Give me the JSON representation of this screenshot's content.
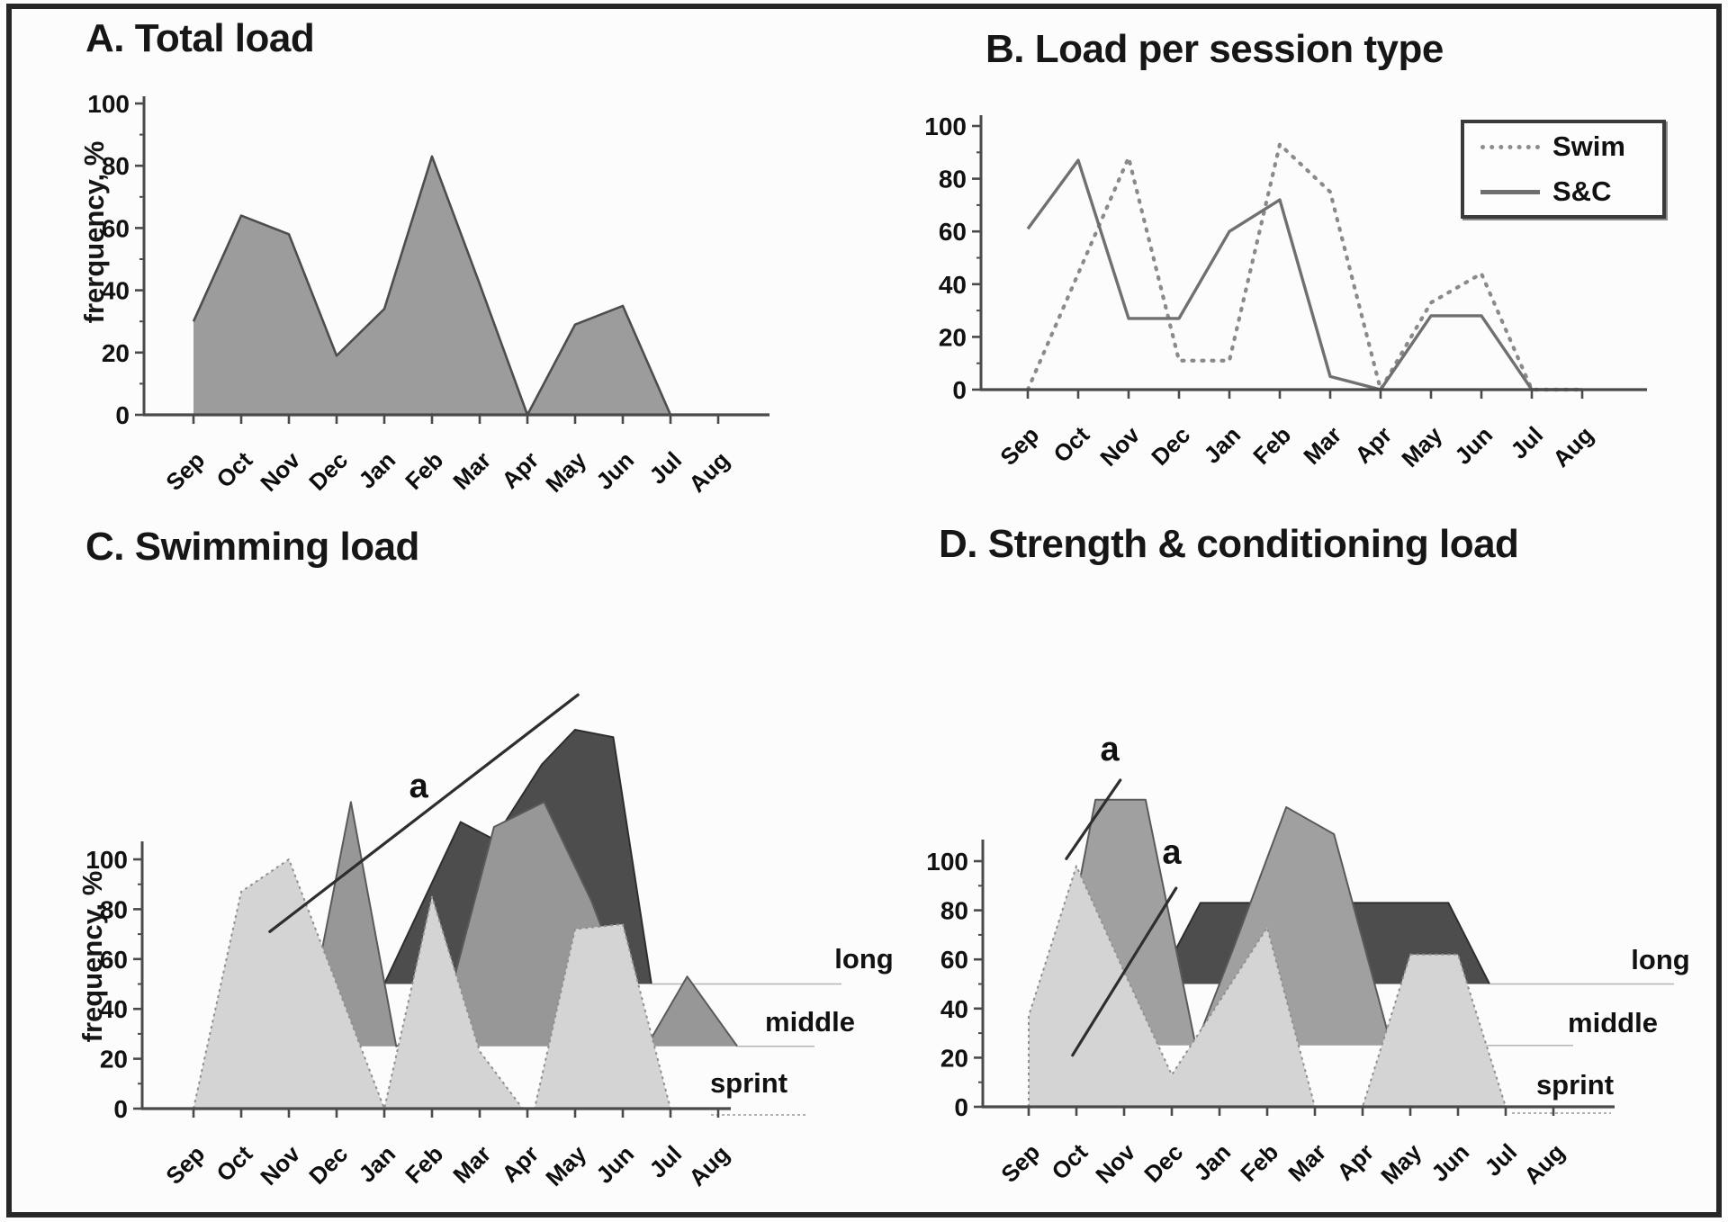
{
  "months": [
    "Sep",
    "Oct",
    "Nov",
    "Dec",
    "Jan",
    "Feb",
    "Mar",
    "Apr",
    "May",
    "Jun",
    "Jul",
    "Aug"
  ],
  "y_ticks": [
    0,
    20,
    40,
    60,
    80,
    100
  ],
  "panels": {
    "a": {
      "title": "A. Total load",
      "ylabel": "frerquency, %"
    },
    "b": {
      "title": "B. Load per session type"
    },
    "c": {
      "title": "C. Swimming load",
      "ylabel": "frequency, %"
    },
    "d": {
      "title": "D. Strength & conditioning load"
    }
  },
  "legend": {
    "entries": [
      {
        "label": "Swim",
        "line": "dotted"
      },
      {
        "label": "S&C",
        "line": "solid"
      }
    ]
  },
  "colors": {
    "area_fill": "#9c9c9c",
    "area_stroke": "#4d4d4d",
    "swim_line": "#8a8a8a",
    "sc_line": "#707070",
    "sprint_fill": "#d4d4d4",
    "middle_fill": "#979797",
    "long_fill": "#4d4d4d",
    "axis": "#4a4a4a",
    "annotation": "#2e2e2e",
    "guide": "#b5b5b5"
  },
  "chart_data": [
    {
      "panel": "A",
      "type": "area",
      "title": "A. Total load",
      "xlabel": "",
      "ylabel": "frerquency, %",
      "ylim": [
        0,
        100
      ],
      "grid": false,
      "categories": [
        "Sep",
        "Oct",
        "Nov",
        "Dec",
        "Jan",
        "Feb",
        "Mar",
        "Apr",
        "May",
        "Jun",
        "Jul",
        "Aug"
      ],
      "values": [
        30,
        64,
        58,
        19,
        34,
        83,
        42,
        0,
        29,
        35,
        0,
        0
      ],
      "fill": "#9c9c9c",
      "stroke": "#4d4d4d"
    },
    {
      "panel": "B",
      "type": "line",
      "title": "B. Load per session type",
      "xlabel": "",
      "ylabel": "",
      "ylim": [
        0,
        100
      ],
      "grid": false,
      "legend_position": "top-right",
      "categories": [
        "Sep",
        "Oct",
        "Nov",
        "Dec",
        "Jan",
        "Feb",
        "Mar",
        "Apr",
        "May",
        "Jun",
        "Jul",
        "Aug"
      ],
      "series": [
        {
          "name": "Swim",
          "style": "dotted",
          "color": "#8a8a8a",
          "values": [
            0,
            44,
            88,
            11,
            11,
            93,
            75,
            0,
            33,
            44,
            0,
            0
          ]
        },
        {
          "name": "S&C",
          "style": "solid",
          "color": "#707070",
          "values": [
            61,
            87,
            27,
            27,
            60,
            72,
            5,
            0,
            28,
            28,
            0,
            0
          ]
        }
      ]
    },
    {
      "panel": "C",
      "type": "area",
      "variant": "3d-ridge",
      "title": "C. Swimming load",
      "xlabel": "",
      "ylabel": "frequency, %",
      "ylim": [
        0,
        100
      ],
      "grid": false,
      "categories": [
        "Sep",
        "Oct",
        "Nov",
        "Dec",
        "Jan",
        "Feb",
        "Mar",
        "Apr",
        "May",
        "Jun",
        "Jul",
        "Aug"
      ],
      "layer_note": "x of each point is month index (0=Sep), may be fractional due to 3d offset; value is % above that layer's baseline",
      "layers": [
        {
          "name": "long",
          "baseline": 50,
          "color": "#4d4d4d",
          "stroke": "#2e2e2e",
          "points": [
            [
              4.0,
              0
            ],
            [
              5.6,
              65
            ],
            [
              6.3,
              58
            ],
            [
              7.3,
              88
            ],
            [
              8.0,
              102
            ],
            [
              8.8,
              99
            ],
            [
              9.6,
              0
            ]
          ]
        },
        {
          "name": "middle",
          "baseline": 25,
          "color": "#979797",
          "stroke": "#5a5a5a",
          "points": [
            [
              2.3,
              0
            ],
            [
              3.3,
              98
            ],
            [
              4.25,
              0
            ],
            [
              5.2,
              8
            ],
            [
              6.3,
              88
            ],
            [
              7.35,
              98
            ],
            [
              8.35,
              58
            ],
            [
              9.5,
              0
            ],
            [
              10.35,
              28
            ],
            [
              11.4,
              0
            ]
          ]
        },
        {
          "name": "sprint",
          "baseline": 0,
          "color": "#d4d4d4",
          "stroke": "#8f8f8f",
          "dotted": true,
          "points": [
            [
              0,
              0
            ],
            [
              1,
              87
            ],
            [
              2,
              100
            ],
            [
              3,
              50
            ],
            [
              4,
              0
            ],
            [
              5,
              85
            ],
            [
              6,
              23
            ],
            [
              6.9,
              0
            ],
            [
              7.15,
              0
            ],
            [
              8,
              72
            ],
            [
              9,
              74
            ],
            [
              10,
              0
            ],
            [
              11,
              0
            ]
          ]
        }
      ],
      "annotations": [
        {
          "text": "a",
          "line": [
            [
              1.6,
              71
            ],
            [
              8.06,
              166
            ]
          ],
          "label_at": [
            4.72,
            125
          ]
        }
      ]
    },
    {
      "panel": "D",
      "type": "area",
      "variant": "3d-ridge",
      "title": "D. Strength & conditioning load",
      "xlabel": "",
      "ylabel": "",
      "ylim": [
        0,
        100
      ],
      "grid": false,
      "categories": [
        "Sep",
        "Oct",
        "Nov",
        "Dec",
        "Jan",
        "Feb",
        "Mar",
        "Apr",
        "May",
        "Jun",
        "Jul",
        "Aug"
      ],
      "layers": [
        {
          "name": "long",
          "baseline": 50,
          "color": "#4d4d4d",
          "stroke": "#2e2e2e",
          "points": [
            [
              2.7,
              0
            ],
            [
              3.6,
              33
            ],
            [
              8.8,
              33
            ],
            [
              9.66,
              0
            ]
          ]
        },
        {
          "name": "middle",
          "baseline": 25,
          "color": "#a0a0a0",
          "stroke": "#5a5a5a",
          "points": [
            [
              0.4,
              0
            ],
            [
              1.4,
              100
            ],
            [
              2.45,
              100
            ],
            [
              3.5,
              0
            ],
            [
              4.3,
              40
            ],
            [
              5.4,
              97
            ],
            [
              6.4,
              86
            ],
            [
              7.6,
              0
            ]
          ]
        },
        {
          "name": "sprint",
          "baseline": 0,
          "color": "#d4d4d4",
          "stroke": "#8f8f8f",
          "dotted": true,
          "points": [
            [
              0,
              0
            ],
            [
              0,
              37
            ],
            [
              1,
              98
            ],
            [
              2,
              55
            ],
            [
              3,
              13
            ],
            [
              4,
              43
            ],
            [
              5,
              73
            ],
            [
              6,
              0
            ],
            [
              7,
              0
            ],
            [
              8,
              62
            ],
            [
              9,
              62
            ],
            [
              10,
              0
            ],
            [
              11,
              0
            ]
          ]
        }
      ],
      "annotations": [
        {
          "text": "a",
          "line": [
            [
              0.79,
              101
            ],
            [
              1.92,
              133
            ]
          ],
          "label_at": [
            1.7,
            141
          ]
        },
        {
          "text": "a",
          "line": [
            [
              0.92,
              21
            ],
            [
              3.09,
              89
            ]
          ],
          "label_at": [
            3.0,
            99
          ]
        }
      ]
    }
  ]
}
